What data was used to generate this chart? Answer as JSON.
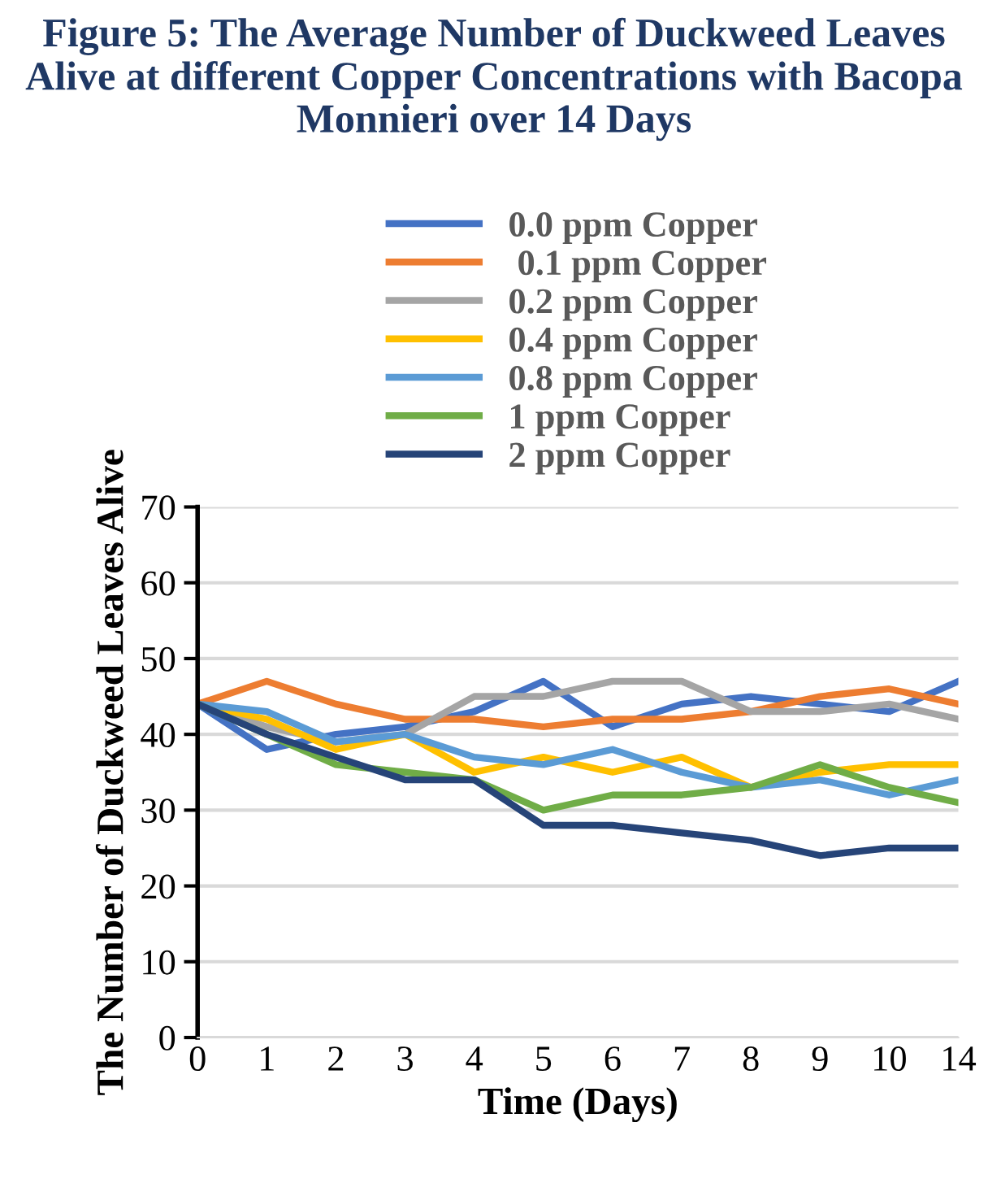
{
  "chart_data": {
    "type": "line",
    "title": "Figure 5: The Average Number of Duckweed Leaves Alive at different Copper Concentrations with Bacopa Monnieri over 14 Days",
    "xlabel": "Time (Days)",
    "ylabel": "The Number of Duckweed Leaves Alive",
    "categories": [
      "0",
      "1",
      "2",
      "3",
      "4",
      "5",
      "6",
      "7",
      "8",
      "9",
      "10",
      "14"
    ],
    "series": [
      {
        "name": "0.0 ppm Copper",
        "color": "#4472c4",
        "values": [
          44,
          38,
          40,
          41,
          43,
          47,
          41,
          44,
          45,
          44,
          43,
          47
        ]
      },
      {
        "name": " 0.1 ppm Copper",
        "color": "#ed7d31",
        "values": [
          44,
          47,
          44,
          42,
          42,
          41,
          42,
          42,
          43,
          45,
          46,
          44
        ]
      },
      {
        "name": "0.2 ppm Copper",
        "color": "#a5a5a5",
        "values": [
          44,
          41,
          39,
          40,
          45,
          45,
          47,
          47,
          43,
          43,
          44,
          42
        ]
      },
      {
        "name": "0.4 ppm Copper",
        "color": "#ffc000",
        "values": [
          44,
          42,
          38,
          40,
          35,
          37,
          35,
          37,
          33,
          35,
          36,
          36
        ]
      },
      {
        "name": "0.8 ppm Copper",
        "color": "#5b9bd5",
        "values": [
          44,
          43,
          39,
          40,
          37,
          36,
          38,
          35,
          33,
          34,
          32,
          34
        ]
      },
      {
        "name": "1 ppm Copper",
        "color": "#70ad47",
        "values": [
          44,
          40,
          36,
          35,
          34,
          30,
          32,
          32,
          33,
          36,
          33,
          31
        ]
      },
      {
        "name": "2 ppm Copper",
        "color": "#264478",
        "values": [
          44,
          40,
          37,
          34,
          34,
          28,
          28,
          27,
          26,
          24,
          25,
          25
        ]
      }
    ],
    "ylim": [
      0,
      70
    ],
    "yticks": [
      0,
      10,
      20,
      30,
      40,
      50,
      60,
      70
    ],
    "grid": "y",
    "legend": "top",
    "marker": "none",
    "line_style": "solid"
  }
}
